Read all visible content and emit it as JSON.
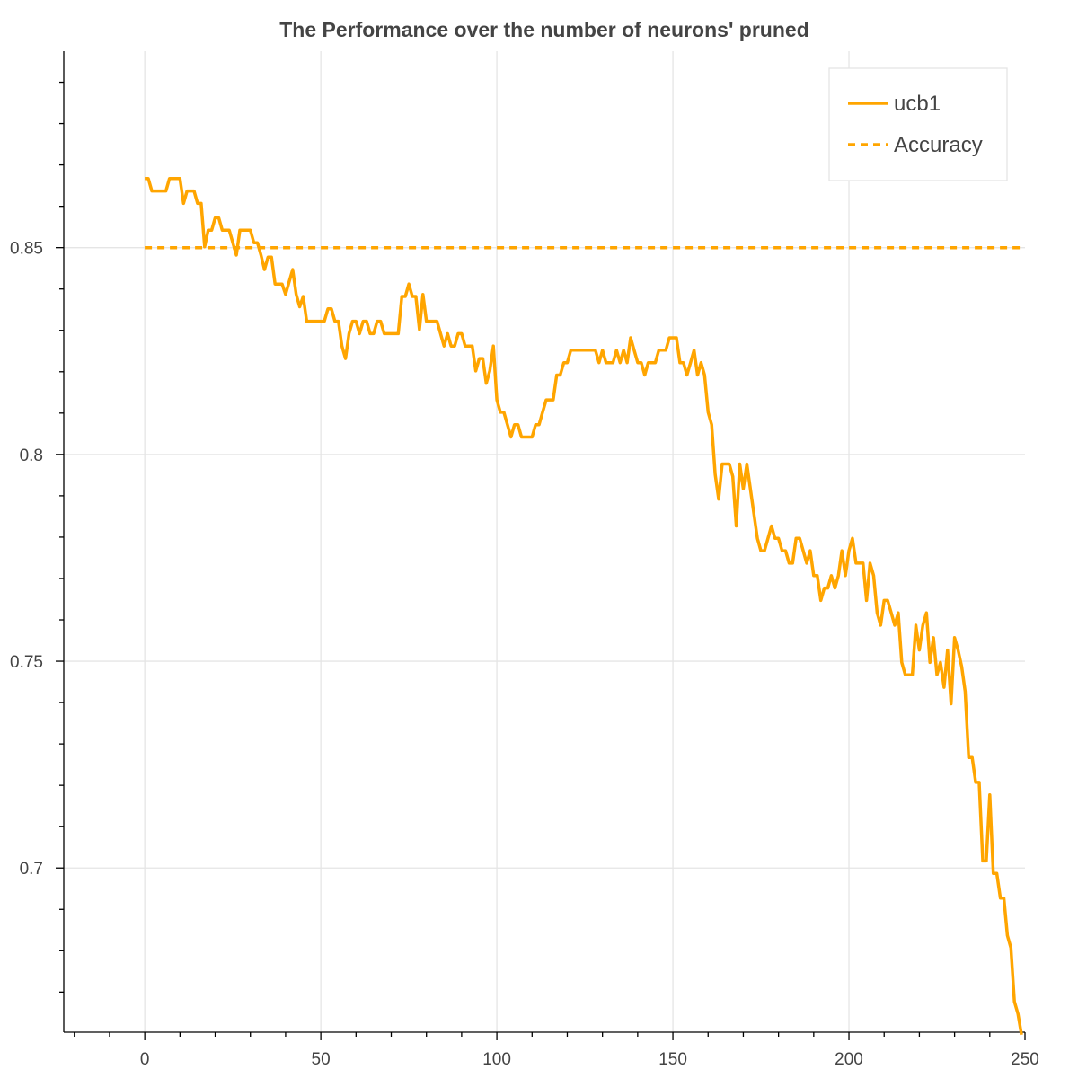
{
  "chart_data": {
    "type": "line",
    "title": "The Performance over the number of neurons' pruned",
    "xlabel": "",
    "ylabel": "",
    "xlim": [
      -23,
      250
    ],
    "ylim": [
      0.6603,
      0.8975
    ],
    "x_ticks": [
      0,
      50,
      100,
      150,
      200,
      250
    ],
    "x_tick_labels": [
      "0",
      "50",
      "100",
      "150",
      "200",
      "250"
    ],
    "y_ticks": [
      0.7,
      0.75,
      0.8,
      0.85
    ],
    "y_tick_labels": [
      "0.7",
      "0.75",
      "0.8",
      "0.85"
    ],
    "grid": true,
    "legend_position": "top-right",
    "series": [
      {
        "name": "ucb1",
        "color": "#FFA500",
        "style": "solid",
        "points": [
          [
            0,
            0.8667
          ],
          [
            1,
            0.8667
          ],
          [
            2,
            0.8637
          ],
          [
            4,
            0.8637
          ],
          [
            6,
            0.8637
          ],
          [
            7,
            0.8667
          ],
          [
            9,
            0.8667
          ],
          [
            10,
            0.8667
          ],
          [
            11,
            0.8607
          ],
          [
            12,
            0.8637
          ],
          [
            14,
            0.8637
          ],
          [
            15,
            0.8607
          ],
          [
            16,
            0.8607
          ],
          [
            17,
            0.8502
          ],
          [
            18,
            0.8542
          ],
          [
            19,
            0.8542
          ],
          [
            20,
            0.8572
          ],
          [
            21,
            0.8572
          ],
          [
            22,
            0.8542
          ],
          [
            24,
            0.8542
          ],
          [
            26,
            0.8482
          ],
          [
            27,
            0.8542
          ],
          [
            28,
            0.8542
          ],
          [
            30,
            0.8542
          ],
          [
            31,
            0.8512
          ],
          [
            32,
            0.8512
          ],
          [
            33,
            0.8482
          ],
          [
            34,
            0.8447
          ],
          [
            35,
            0.8477
          ],
          [
            36,
            0.8477
          ],
          [
            37,
            0.8412
          ],
          [
            39,
            0.8412
          ],
          [
            40,
            0.8387
          ],
          [
            41,
            0.8417
          ],
          [
            42,
            0.8447
          ],
          [
            43,
            0.8387
          ],
          [
            44,
            0.8357
          ],
          [
            45,
            0.8382
          ],
          [
            46,
            0.8322
          ],
          [
            48,
            0.8322
          ],
          [
            50,
            0.8322
          ],
          [
            51,
            0.8322
          ],
          [
            52,
            0.8352
          ],
          [
            53,
            0.8352
          ],
          [
            54,
            0.8322
          ],
          [
            55,
            0.8322
          ],
          [
            56,
            0.8262
          ],
          [
            57,
            0.8232
          ],
          [
            58,
            0.8292
          ],
          [
            59,
            0.8322
          ],
          [
            60,
            0.8322
          ],
          [
            61,
            0.8292
          ],
          [
            62,
            0.8322
          ],
          [
            63,
            0.8322
          ],
          [
            64,
            0.8292
          ],
          [
            65,
            0.8292
          ],
          [
            66,
            0.8322
          ],
          [
            67,
            0.8322
          ],
          [
            68,
            0.8292
          ],
          [
            70,
            0.8292
          ],
          [
            72,
            0.8292
          ],
          [
            73,
            0.8382
          ],
          [
            74,
            0.8382
          ],
          [
            75,
            0.8412
          ],
          [
            76,
            0.8382
          ],
          [
            77,
            0.8382
          ],
          [
            78,
            0.8302
          ],
          [
            79,
            0.8387
          ],
          [
            80,
            0.8322
          ],
          [
            82,
            0.8322
          ],
          [
            83,
            0.8322
          ],
          [
            84,
            0.8292
          ],
          [
            85,
            0.8262
          ],
          [
            86,
            0.8292
          ],
          [
            87,
            0.8262
          ],
          [
            88,
            0.8262
          ],
          [
            89,
            0.8292
          ],
          [
            90,
            0.8292
          ],
          [
            91,
            0.8262
          ],
          [
            92,
            0.8262
          ],
          [
            93,
            0.8262
          ],
          [
            94,
            0.8202
          ],
          [
            95,
            0.8232
          ],
          [
            96,
            0.8232
          ],
          [
            97,
            0.8172
          ],
          [
            98,
            0.8202
          ],
          [
            99,
            0.8262
          ],
          [
            100,
            0.8132
          ],
          [
            101,
            0.8102
          ],
          [
            102,
            0.8102
          ],
          [
            104,
            0.8042
          ],
          [
            105,
            0.8072
          ],
          [
            106,
            0.8072
          ],
          [
            107,
            0.8042
          ],
          [
            108,
            0.8042
          ],
          [
            110,
            0.8042
          ],
          [
            111,
            0.8072
          ],
          [
            112,
            0.8072
          ],
          [
            113,
            0.8102
          ],
          [
            114,
            0.8132
          ],
          [
            116,
            0.8132
          ],
          [
            117,
            0.8192
          ],
          [
            118,
            0.8192
          ],
          [
            119,
            0.8222
          ],
          [
            120,
            0.8222
          ],
          [
            121,
            0.8252
          ],
          [
            122,
            0.8252
          ],
          [
            124,
            0.8252
          ],
          [
            126,
            0.8252
          ],
          [
            128,
            0.8252
          ],
          [
            129,
            0.8222
          ],
          [
            130,
            0.8252
          ],
          [
            131,
            0.8222
          ],
          [
            132,
            0.8222
          ],
          [
            133,
            0.8222
          ],
          [
            134,
            0.8252
          ],
          [
            135,
            0.8222
          ],
          [
            136,
            0.8252
          ],
          [
            137,
            0.8222
          ],
          [
            138,
            0.8282
          ],
          [
            139,
            0.8252
          ],
          [
            140,
            0.8222
          ],
          [
            141,
            0.8222
          ],
          [
            142,
            0.8192
          ],
          [
            143,
            0.8222
          ],
          [
            144,
            0.8222
          ],
          [
            145,
            0.8222
          ],
          [
            146,
            0.8252
          ],
          [
            147,
            0.8252
          ],
          [
            148,
            0.8252
          ],
          [
            149,
            0.8282
          ],
          [
            150,
            0.8282
          ],
          [
            151,
            0.8282
          ],
          [
            152,
            0.8222
          ],
          [
            153,
            0.8222
          ],
          [
            154,
            0.8192
          ],
          [
            155,
            0.8222
          ],
          [
            156,
            0.8252
          ],
          [
            157,
            0.8192
          ],
          [
            158,
            0.8222
          ],
          [
            159,
            0.8192
          ],
          [
            160,
            0.8102
          ],
          [
            161,
            0.8072
          ],
          [
            162,
            0.7952
          ],
          [
            163,
            0.7892
          ],
          [
            164,
            0.7977
          ],
          [
            165,
            0.7977
          ],
          [
            166,
            0.7977
          ],
          [
            167,
            0.7947
          ],
          [
            168,
            0.7827
          ],
          [
            169,
            0.7977
          ],
          [
            170,
            0.7917
          ],
          [
            171,
            0.7977
          ],
          [
            172,
            0.7917
          ],
          [
            173,
            0.7857
          ],
          [
            174,
            0.7797
          ],
          [
            175,
            0.7767
          ],
          [
            176,
            0.7767
          ],
          [
            177,
            0.7797
          ],
          [
            178,
            0.7827
          ],
          [
            179,
            0.7797
          ],
          [
            180,
            0.7797
          ],
          [
            181,
            0.7767
          ],
          [
            182,
            0.7767
          ],
          [
            183,
            0.7737
          ],
          [
            184,
            0.7737
          ],
          [
            185,
            0.7797
          ],
          [
            186,
            0.7797
          ],
          [
            187,
            0.7767
          ],
          [
            188,
            0.7737
          ],
          [
            189,
            0.7767
          ],
          [
            190,
            0.7707
          ],
          [
            191,
            0.7707
          ],
          [
            192,
            0.7647
          ],
          [
            193,
            0.7677
          ],
          [
            194,
            0.7677
          ],
          [
            195,
            0.7707
          ],
          [
            196,
            0.7677
          ],
          [
            197,
            0.7707
          ],
          [
            198,
            0.7767
          ],
          [
            199,
            0.7707
          ],
          [
            200,
            0.7767
          ],
          [
            201,
            0.7797
          ],
          [
            202,
            0.7737
          ],
          [
            203,
            0.7737
          ],
          [
            204,
            0.7737
          ],
          [
            205,
            0.7647
          ],
          [
            206,
            0.7737
          ],
          [
            207,
            0.7707
          ],
          [
            208,
            0.7617
          ],
          [
            209,
            0.7587
          ],
          [
            210,
            0.7647
          ],
          [
            211,
            0.7647
          ],
          [
            212,
            0.7617
          ],
          [
            213,
            0.7587
          ],
          [
            214,
            0.7617
          ],
          [
            215,
            0.7497
          ],
          [
            216,
            0.7467
          ],
          [
            217,
            0.7467
          ],
          [
            218,
            0.7467
          ],
          [
            219,
            0.7587
          ],
          [
            220,
            0.7527
          ],
          [
            221,
            0.7587
          ],
          [
            222,
            0.7617
          ],
          [
            223,
            0.7497
          ],
          [
            224,
            0.7557
          ],
          [
            225,
            0.7467
          ],
          [
            226,
            0.7497
          ],
          [
            227,
            0.7437
          ],
          [
            228,
            0.7527
          ],
          [
            229,
            0.7397
          ],
          [
            230,
            0.7557
          ],
          [
            231,
            0.7527
          ],
          [
            232,
            0.7487
          ],
          [
            233,
            0.7427
          ],
          [
            234,
            0.7267
          ],
          [
            235,
            0.7267
          ],
          [
            236,
            0.7207
          ],
          [
            237,
            0.7207
          ],
          [
            238,
            0.7017
          ],
          [
            239,
            0.7017
          ],
          [
            240,
            0.7177
          ],
          [
            241,
            0.6987
          ],
          [
            242,
            0.6987
          ],
          [
            243,
            0.6927
          ],
          [
            244,
            0.6927
          ],
          [
            245,
            0.6837
          ],
          [
            246,
            0.6807
          ],
          [
            247,
            0.6677
          ],
          [
            248,
            0.6647
          ],
          [
            249,
            0.6597
          ]
        ]
      },
      {
        "name": "Accuracy",
        "color": "#FFA500",
        "style": "dashed",
        "points": [
          [
            0,
            0.85
          ],
          [
            250,
            0.85
          ]
        ]
      }
    ]
  }
}
